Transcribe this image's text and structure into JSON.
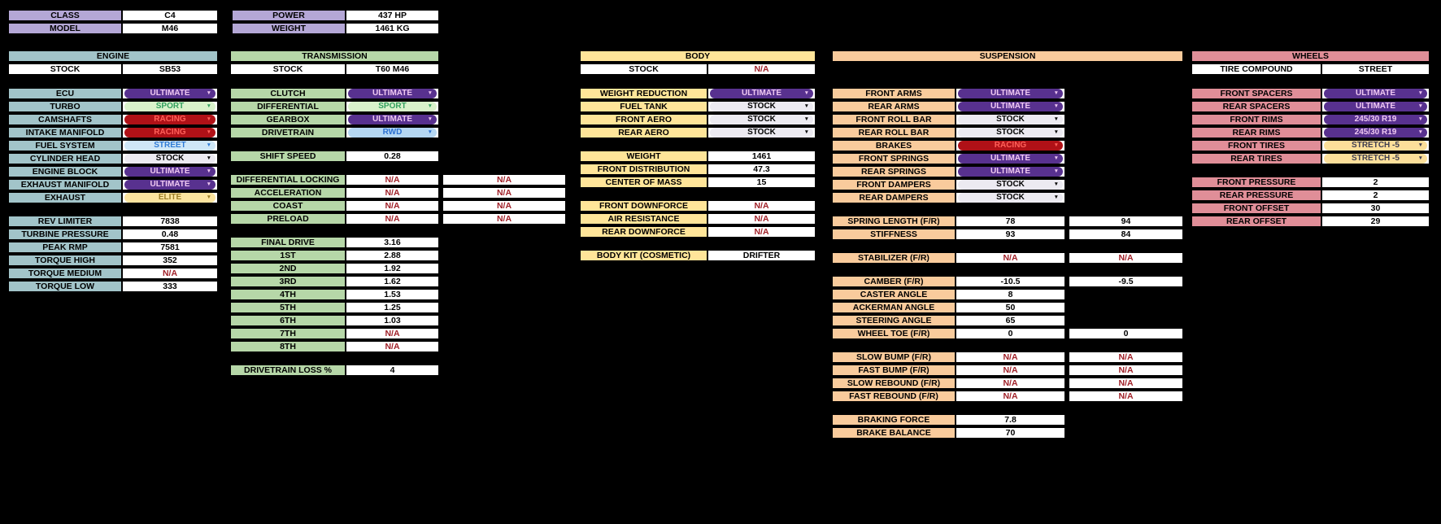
{
  "colors": {
    "background": "#000000",
    "na_text": "#a02028",
    "top_table_accent": "#b4a7d6",
    "engine_accent": "#a2c4c9",
    "transmission_accent": "#b6d7a8",
    "body_accent": "#ffe599",
    "suspension_accent": "#f9cb9c",
    "wheels_accent": "#e08e98",
    "pill_styles": {
      "ultimate": {
        "bg": "#58318f",
        "fg": "#efc8f2"
      },
      "sport": {
        "bg": "#d9f2cb",
        "fg": "#33a05f"
      },
      "racing": {
        "bg": "#b01117",
        "fg": "#ff6059"
      },
      "street": {
        "bg": "#cfe7f7",
        "fg": "#2e7bd6"
      },
      "rwd": {
        "bg": "#b5d7f2",
        "fg": "#2a6fd0"
      },
      "stock": {
        "bg": "#eceaf1",
        "fg": "#000000"
      },
      "elite": {
        "bg": "#fce49f",
        "fg": "#9c7e27"
      },
      "stretch": {
        "bg": "#fcdf9a",
        "fg": "#3d3d50"
      },
      "rims": {
        "bg": "#58318f",
        "fg": "#efc8f2"
      }
    }
  },
  "top_tables": [
    {
      "rows": [
        {
          "label": "CLASS",
          "value": "C4"
        },
        {
          "label": "MODEL",
          "value": "M46"
        }
      ]
    },
    {
      "rows": [
        {
          "label": "POWER",
          "value": "437 HP"
        },
        {
          "label": "WEIGHT",
          "value": "1461 KG"
        }
      ]
    }
  ],
  "columns": [
    {
      "id": "engine",
      "title": "ENGINE",
      "accent": "#a2c4c9",
      "stock_row": {
        "label": "STOCK",
        "value": "SB53"
      },
      "blocks": [
        {
          "rows": [
            {
              "label": "ECU",
              "dropdown": {
                "text": "ULTIMATE",
                "style": "ultimate"
              }
            },
            {
              "label": "TURBO",
              "dropdown": {
                "text": "SPORT",
                "style": "sport"
              }
            },
            {
              "label": "CAMSHAFTS",
              "dropdown": {
                "text": "RACING",
                "style": "racing"
              }
            },
            {
              "label": "INTAKE MANIFOLD",
              "dropdown": {
                "text": "RACING",
                "style": "racing"
              }
            },
            {
              "label": "FUEL SYSTEM",
              "dropdown": {
                "text": "STREET",
                "style": "street"
              }
            },
            {
              "label": "CYLINDER HEAD",
              "dropdown": {
                "text": "STOCK",
                "style": "stock"
              }
            },
            {
              "label": "ENGINE BLOCK",
              "dropdown": {
                "text": "ULTIMATE",
                "style": "ultimate"
              }
            },
            {
              "label": "EXHAUST MANIFOLD",
              "dropdown": {
                "text": "ULTIMATE",
                "style": "ultimate"
              }
            },
            {
              "label": "EXHAUST",
              "dropdown": {
                "text": "ELITE",
                "style": "elite"
              }
            }
          ]
        },
        {
          "rows": [
            {
              "label": "REV LIMITER",
              "value": "7838"
            },
            {
              "label": "TURBINE PRESSURE",
              "value": "0.48"
            },
            {
              "label": "PEAK RMP",
              "value": "7581"
            },
            {
              "label": "TORQUE HIGH",
              "value": "352"
            },
            {
              "label": "TORQUE MEDIUM",
              "value": "N/A"
            },
            {
              "label": "TORQUE LOW",
              "value": "333"
            }
          ]
        }
      ]
    },
    {
      "id": "transmission",
      "title": "TRANSMISSION",
      "accent": "#b6d7a8",
      "stock_row": {
        "label": "STOCK",
        "value": "T60 M46"
      },
      "blocks": [
        {
          "rows": [
            {
              "label": "CLUTCH",
              "dropdown": {
                "text": "ULTIMATE",
                "style": "ultimate"
              }
            },
            {
              "label": "DIFFERENTIAL",
              "dropdown": {
                "text": "SPORT",
                "style": "sport"
              }
            },
            {
              "label": "GEARBOX",
              "dropdown": {
                "text": "ULTIMATE",
                "style": "ultimate"
              }
            },
            {
              "label": "DRIVETRAIN",
              "dropdown": {
                "text": "RWD",
                "style": "rwd"
              }
            }
          ]
        },
        {
          "rows": [
            {
              "label": "SHIFT SPEED",
              "value": "0.28"
            }
          ]
        },
        {
          "rows": [
            {
              "label": "DIFFERENTIAL LOCKING",
              "values": [
                "N/A",
                "N/A"
              ]
            },
            {
              "label": "ACCELERATION",
              "values": [
                "N/A",
                "N/A"
              ]
            },
            {
              "label": "COAST",
              "values": [
                "N/A",
                "N/A"
              ]
            },
            {
              "label": "PRELOAD",
              "values": [
                "N/A",
                "N/A"
              ]
            }
          ]
        },
        {
          "rows": [
            {
              "label": "FINAL DRIVE",
              "value": "3.16"
            },
            {
              "label": "1ST",
              "value": "2.88"
            },
            {
              "label": "2ND",
              "value": "1.92"
            },
            {
              "label": "3RD",
              "value": "1.62"
            },
            {
              "label": "4TH",
              "value": "1.53"
            },
            {
              "label": "5TH",
              "value": "1.25"
            },
            {
              "label": "6TH",
              "value": "1.03"
            },
            {
              "label": "7TH",
              "value": "N/A"
            },
            {
              "label": "8TH",
              "value": "N/A"
            }
          ]
        },
        {
          "rows": [
            {
              "label": "DRIVETRAIN LOSS %",
              "value": "4"
            }
          ]
        }
      ]
    },
    {
      "id": "body",
      "title": "BODY",
      "accent": "#ffe599",
      "stock_row": {
        "label": "STOCK",
        "value": "N/A"
      },
      "blocks": [
        {
          "rows": [
            {
              "label": "WEIGHT REDUCTION",
              "dropdown": {
                "text": "ULTIMATE",
                "style": "ultimate"
              }
            },
            {
              "label": "FUEL TANK",
              "dropdown": {
                "text": "STOCK",
                "style": "stock"
              }
            },
            {
              "label": "FRONT AERO",
              "dropdown": {
                "text": "STOCK",
                "style": "stock"
              }
            },
            {
              "label": "REAR AERO",
              "dropdown": {
                "text": "STOCK",
                "style": "stock"
              }
            }
          ]
        },
        {
          "rows": [
            {
              "label": "WEIGHT",
              "value": "1461"
            },
            {
              "label": "FRONT DISTRIBUTION",
              "value": "47.3"
            },
            {
              "label": "CENTER OF MASS",
              "value": "15"
            }
          ]
        },
        {
          "rows": [
            {
              "label": "FRONT DOWNFORCE",
              "value": "N/A"
            },
            {
              "label": "AIR RESISTANCE",
              "value": "N/A"
            },
            {
              "label": "REAR DOWNFORCE",
              "value": "N/A"
            }
          ]
        },
        {
          "rows": [
            {
              "label": "BODY KIT (COSMETIC)",
              "value": "DRIFTER"
            }
          ]
        }
      ]
    },
    {
      "id": "suspension",
      "title": "SUSPENSION",
      "accent": "#f9cb9c",
      "blocks": [
        {
          "rows": [
            {
              "label": "FRONT ARMS",
              "dropdown": {
                "text": "ULTIMATE",
                "style": "ultimate"
              }
            },
            {
              "label": "REAR ARMS",
              "dropdown": {
                "text": "ULTIMATE",
                "style": "ultimate"
              }
            },
            {
              "label": "FRONT ROLL BAR",
              "dropdown": {
                "text": "STOCK",
                "style": "stock"
              }
            },
            {
              "label": "REAR ROLL BAR",
              "dropdown": {
                "text": "STOCK",
                "style": "stock"
              }
            },
            {
              "label": "BRAKES",
              "dropdown": {
                "text": "RACING",
                "style": "racing"
              }
            },
            {
              "label": "FRONT SPRINGS",
              "dropdown": {
                "text": "ULTIMATE",
                "style": "ultimate"
              }
            },
            {
              "label": "REAR SPRINGS",
              "dropdown": {
                "text": "ULTIMATE",
                "style": "ultimate"
              }
            },
            {
              "label": "FRONT DAMPERS",
              "dropdown": {
                "text": "STOCK",
                "style": "stock"
              }
            },
            {
              "label": "REAR DAMPERS",
              "dropdown": {
                "text": "STOCK",
                "style": "stock"
              }
            }
          ]
        },
        {
          "rows": [
            {
              "label": "SPRING LENGTH (F/R)",
              "values": [
                "78",
                "94"
              ]
            },
            {
              "label": "STIFFNESS",
              "values": [
                "93",
                "84"
              ]
            }
          ]
        },
        {
          "rows": [
            {
              "label": "STABILIZER (F/R)",
              "values": [
                "N/A",
                "N/A"
              ]
            }
          ]
        },
        {
          "rows": [
            {
              "label": "CAMBER (F/R)",
              "values": [
                "-10.5",
                "-9.5"
              ]
            },
            {
              "label": "CASTER ANGLE",
              "value": "8"
            },
            {
              "label": "ACKERMAN ANGLE",
              "value": "50"
            },
            {
              "label": "STEERING ANGLE",
              "value": "65"
            },
            {
              "label": "WHEEL TOE (F/R)",
              "values": [
                "0",
                "0"
              ]
            }
          ]
        },
        {
          "rows": [
            {
              "label": "SLOW BUMP (F/R)",
              "values": [
                "N/A",
                "N/A"
              ]
            },
            {
              "label": "FAST BUMP (F/R)",
              "values": [
                "N/A",
                "N/A"
              ]
            },
            {
              "label": "SLOW REBOUND (F/R)",
              "values": [
                "N/A",
                "N/A"
              ]
            },
            {
              "label": "FAST REBOUND (F/R)",
              "values": [
                "N/A",
                "N/A"
              ]
            }
          ]
        },
        {
          "rows": [
            {
              "label": "BRAKING FORCE",
              "value": "7.8"
            },
            {
              "label": "BRAKE BALANCE",
              "value": "70"
            }
          ]
        }
      ]
    },
    {
      "id": "wheels",
      "title": "WHEELS",
      "accent": "#e08e98",
      "stock_row": {
        "label": "TIRE COMPOUND",
        "value": "STREET"
      },
      "blocks": [
        {
          "rows": [
            {
              "label": "FRONT SPACERS",
              "dropdown": {
                "text": "ULTIMATE",
                "style": "ultimate"
              }
            },
            {
              "label": "REAR SPACERS",
              "dropdown": {
                "text": "ULTIMATE",
                "style": "ultimate"
              }
            },
            {
              "label": "FRONT RIMS",
              "dropdown": {
                "text": "245/30 R19",
                "style": "rims"
              }
            },
            {
              "label": "REAR RIMS",
              "dropdown": {
                "text": "245/30 R19",
                "style": "rims"
              }
            },
            {
              "label": "FRONT TIRES",
              "dropdown": {
                "text": "STRETCH -5",
                "style": "stretch"
              }
            },
            {
              "label": "REAR TIRES",
              "dropdown": {
                "text": "STRETCH -5",
                "style": "stretch"
              }
            }
          ]
        },
        {
          "rows": [
            {
              "label": "FRONT PRESSURE",
              "value": "2"
            },
            {
              "label": "REAR PRESSURE",
              "value": "2"
            },
            {
              "label": "FRONT OFFSET",
              "value": "30"
            },
            {
              "label": "REAR OFFSET",
              "value": "29"
            }
          ]
        }
      ]
    }
  ]
}
